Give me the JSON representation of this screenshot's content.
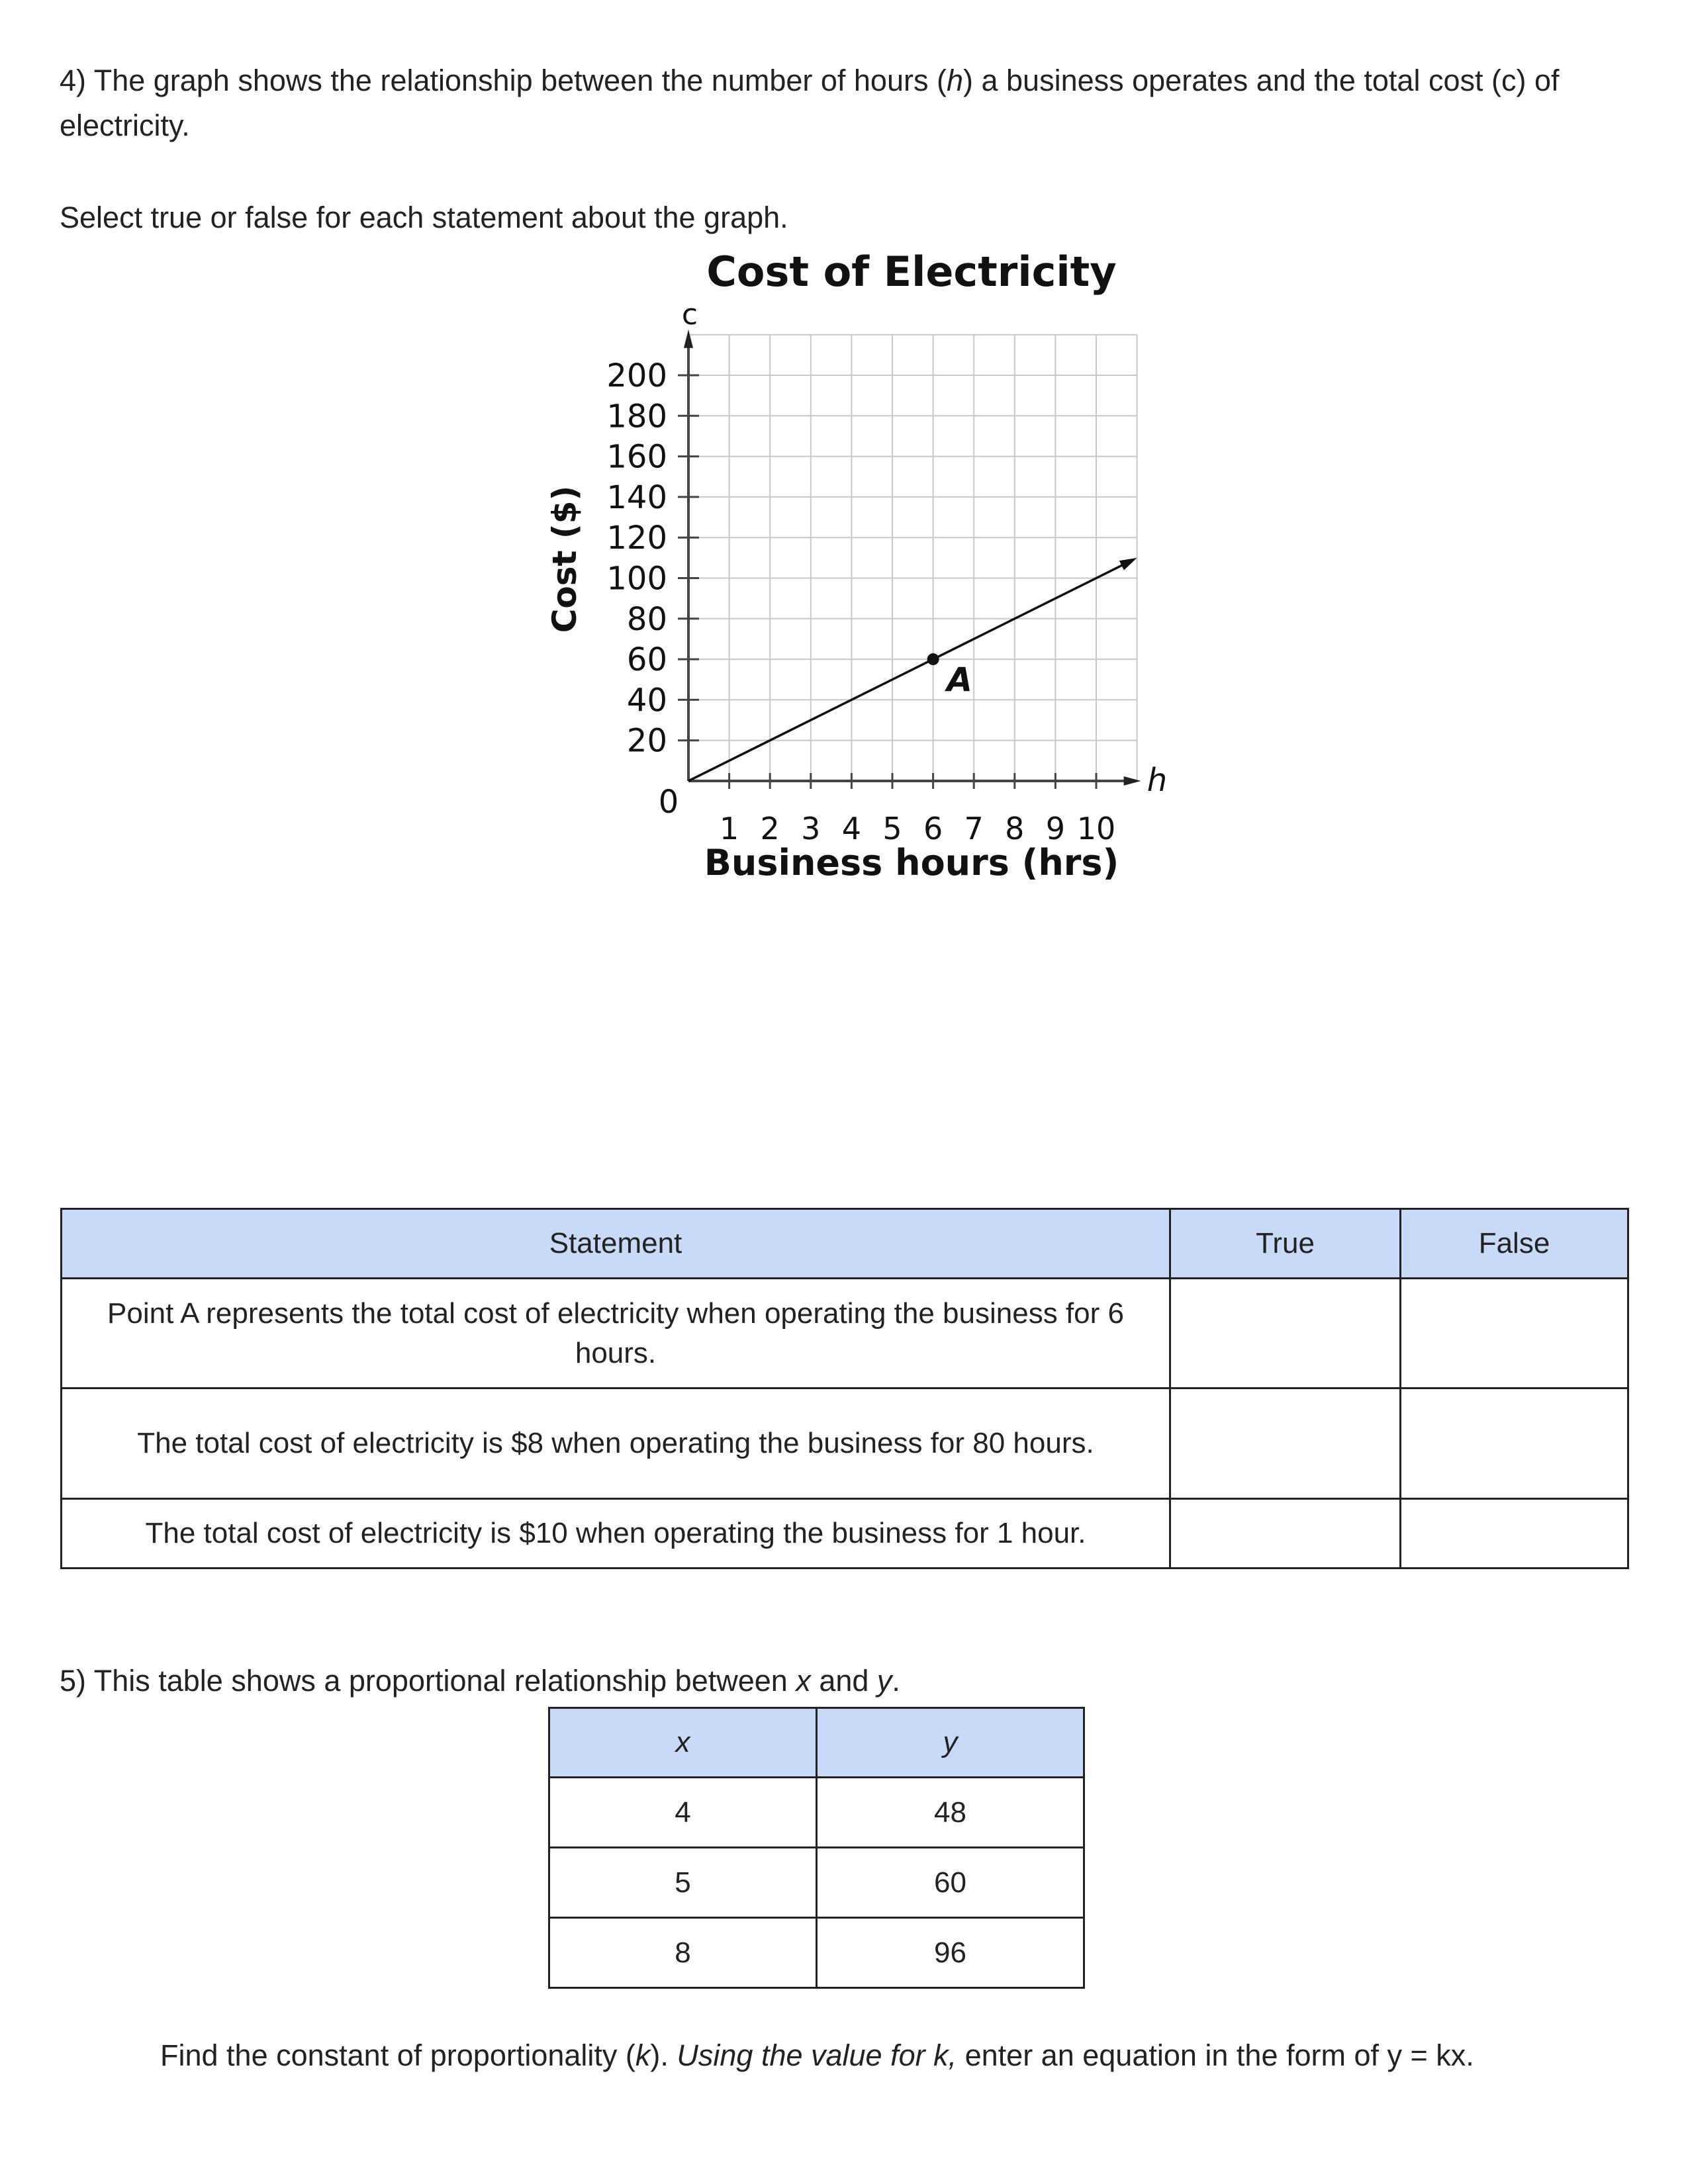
{
  "q4": {
    "prompt_a": "4) The graph shows the relationship between the number of hours (",
    "prompt_var_h": "h",
    "prompt_b": ") a business operates and the total cost (c) of electricity.",
    "instruction": "Select true or false for each statement about the graph.",
    "table": {
      "headers": [
        "Statement",
        "True",
        "False"
      ],
      "rows": [
        "Point A represents the total cost of electricity when operating the business for 6 hours.",
        "The total cost of electricity is $8 when operating the business for 80 hours.",
        "The total cost of electricity is $10 when operating the business for 1 hour."
      ]
    }
  },
  "chart_data": {
    "type": "line",
    "title": "Cost of Electricity",
    "xlabel": "Business hours (hrs)",
    "ylabel": "Cost ($)",
    "x_axis_var": "h",
    "y_axis_var": "c",
    "origin_label": "0",
    "xlim": [
      0,
      11
    ],
    "ylim": [
      0,
      220
    ],
    "x_ticks": [
      "1",
      "2",
      "3",
      "4",
      "5",
      "6",
      "7",
      "8",
      "9",
      "10"
    ],
    "y_ticks": [
      "20",
      "40",
      "60",
      "80",
      "100",
      "120",
      "140",
      "160",
      "180",
      "200"
    ],
    "grid": true,
    "series": [
      {
        "x": [
          0,
          11
        ],
        "y": [
          0,
          110
        ]
      }
    ],
    "points": [
      {
        "label": "A",
        "x": 6,
        "y": 60
      }
    ],
    "line_color": "#111111",
    "grid_color": "#c8c8c8"
  },
  "q5": {
    "prompt_a": "5) This table shows a proportional relationship between ",
    "var_x": "x",
    "and": " and ",
    "var_y": "y",
    "period": ".",
    "table": {
      "headers": [
        "x",
        "y"
      ],
      "rows": [
        [
          "4",
          "48"
        ],
        [
          "5",
          "60"
        ],
        [
          "8",
          "96"
        ]
      ]
    },
    "task_a": "Find the constant of proportionality (",
    "task_k": "k",
    "task_b": "). ",
    "task_italic": "Using the value for k,",
    "task_c": " enter an equation in the form of y = kx."
  },
  "colors": {
    "header_bg": "#c9daf8"
  }
}
